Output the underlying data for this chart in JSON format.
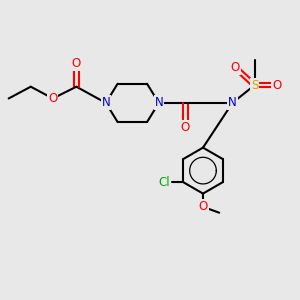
{
  "bg_color": "#e8e8e8",
  "bond_color": "#000000",
  "bond_width": 1.5,
  "atom_colors": {
    "O": "#ff0000",
    "N": "#0000cc",
    "S": "#ccaa00",
    "Cl": "#00aa00",
    "C": "#000000"
  },
  "font_size": 8.5,
  "fig_size": [
    3.0,
    3.0
  ],
  "dpi": 100
}
